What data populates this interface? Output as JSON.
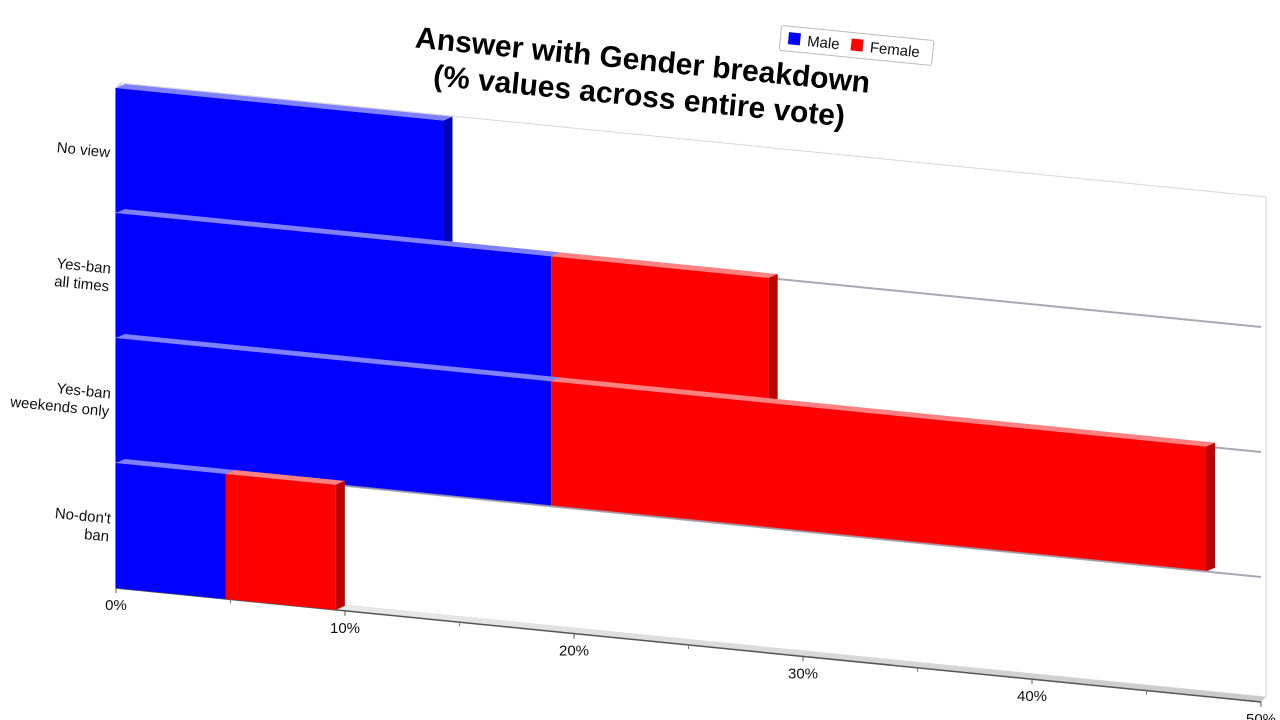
{
  "chart_data": {
    "type": "bar",
    "orientation": "horizontal",
    "stacked": true,
    "three_d": true,
    "title": "Answer with Gender breakdown",
    "subtitle": "(% values across entire vote)",
    "categories": [
      "No view",
      "Yes-ban all times",
      "Yes-ban weekends only",
      "No-don't ban"
    ],
    "category_labels": [
      [
        "No view"
      ],
      [
        "Yes-ban",
        "all times"
      ],
      [
        "Yes-ban",
        "weekends only"
      ],
      [
        "No-don't",
        "ban"
      ]
    ],
    "series": [
      {
        "name": "Male",
        "color": "#0000ff",
        "values": [
          14.3,
          19.0,
          19.0,
          4.8
        ]
      },
      {
        "name": "Female",
        "color": "#ff0000",
        "values": [
          0,
          9.5,
          28.6,
          4.8
        ]
      }
    ],
    "xlim": [
      0,
      50
    ],
    "x_ticks": [
      "0%",
      "10%",
      "20%",
      "30%",
      "40%",
      "50%"
    ],
    "legend": "top-right",
    "grid": false
  }
}
